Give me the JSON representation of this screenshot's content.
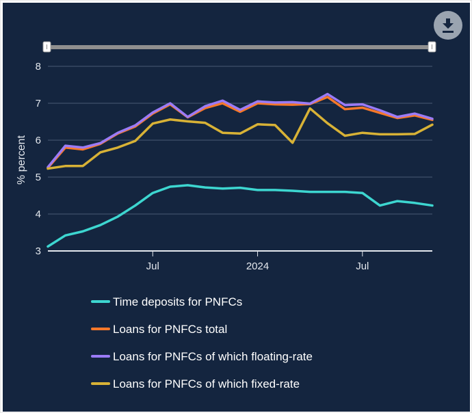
{
  "toolbar": {
    "download_icon": "download-icon"
  },
  "chart_data": {
    "type": "line",
    "title": "",
    "xlabel": "",
    "ylabel": "% percent",
    "ylim": [
      3,
      8
    ],
    "yticks": [
      3,
      4,
      5,
      6,
      7,
      8
    ],
    "x_labels": [
      {
        "label": "Jul",
        "index": 6
      },
      {
        "label": "2024",
        "index": 12
      },
      {
        "label": "Jul",
        "index": 18
      }
    ],
    "x_count": 24,
    "grid": true,
    "legend_position": "bottom",
    "series": [
      {
        "name": "Time deposits for PNFCs",
        "color": "#3dd6d0",
        "values": [
          3.12,
          3.42,
          3.53,
          3.7,
          3.93,
          4.23,
          4.57,
          4.74,
          4.78,
          4.72,
          4.69,
          4.71,
          4.65,
          4.65,
          4.63,
          4.6,
          4.6,
          4.6,
          4.57,
          4.23,
          4.35,
          4.3,
          4.23
        ]
      },
      {
        "name": "Loans for PNFCs total",
        "color": "#f6782a",
        "values": [
          5.25,
          5.8,
          5.75,
          5.9,
          6.18,
          6.37,
          6.72,
          6.97,
          6.62,
          6.87,
          7.0,
          6.77,
          7.0,
          6.97,
          6.96,
          6.98,
          7.17,
          6.84,
          6.88,
          6.74,
          6.6,
          6.67,
          6.55
        ]
      },
      {
        "name": "Loans for PNFCs of which floating-rate",
        "color": "#9b7bf7",
        "values": [
          5.27,
          5.85,
          5.8,
          5.92,
          6.2,
          6.4,
          6.75,
          7.0,
          6.63,
          6.92,
          7.07,
          6.82,
          7.05,
          7.02,
          7.03,
          6.99,
          7.25,
          6.95,
          6.97,
          6.81,
          6.63,
          6.72,
          6.58
        ]
      },
      {
        "name": "Loans for PNFCs of which fixed-rate",
        "color": "#d8b236",
        "values": [
          5.23,
          5.3,
          5.3,
          5.67,
          5.8,
          5.98,
          6.45,
          6.56,
          6.51,
          6.47,
          6.2,
          6.18,
          6.43,
          6.41,
          5.93,
          6.86,
          6.46,
          6.12,
          6.2,
          6.16,
          6.16,
          6.17,
          6.42
        ]
      }
    ]
  }
}
